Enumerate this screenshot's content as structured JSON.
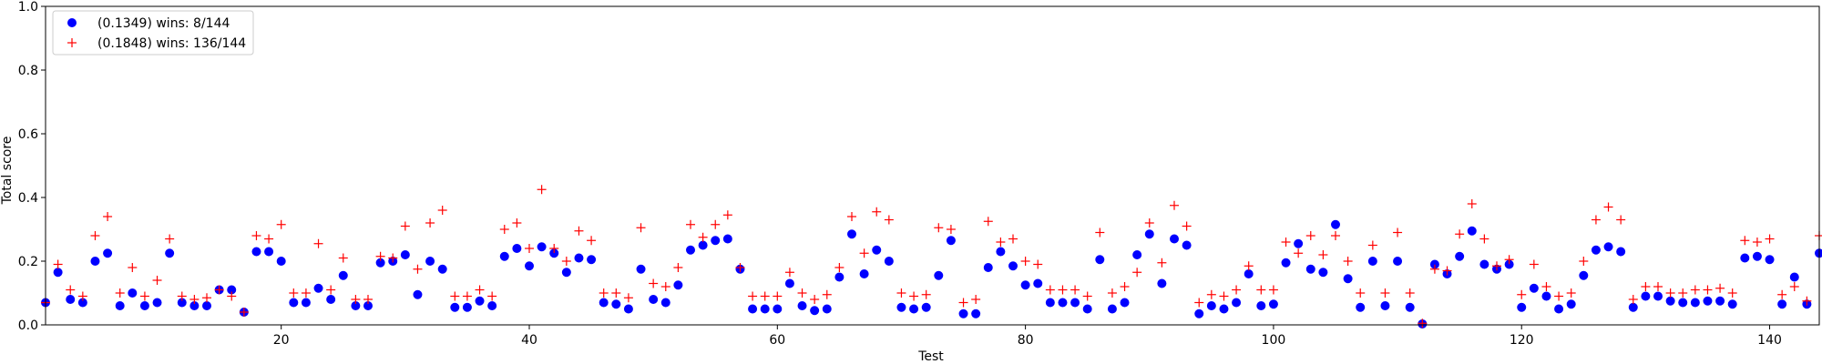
{
  "chart_data": {
    "type": "scatter",
    "xlabel": "Test",
    "ylabel": "Total score",
    "xlim": [
      1,
      144
    ],
    "ylim": [
      0.0,
      1.0
    ],
    "xticks": [
      20,
      40,
      60,
      80,
      100,
      120,
      140
    ],
    "yticks": [
      0.0,
      0.2,
      0.4,
      0.6,
      0.8,
      1.0
    ],
    "ytick_labels": [
      "0.0",
      "0.2",
      "0.4",
      "0.6",
      "0.8",
      "1.0"
    ],
    "grid": false,
    "legend_position": "top-left",
    "x": [
      1,
      2,
      3,
      4,
      5,
      6,
      7,
      8,
      9,
      10,
      11,
      12,
      13,
      14,
      15,
      16,
      17,
      18,
      19,
      20,
      21,
      22,
      23,
      24,
      25,
      26,
      27,
      28,
      29,
      30,
      31,
      32,
      33,
      34,
      35,
      36,
      37,
      38,
      39,
      40,
      41,
      42,
      43,
      44,
      45,
      46,
      47,
      48,
      49,
      50,
      51,
      52,
      53,
      54,
      55,
      56,
      57,
      58,
      59,
      60,
      61,
      62,
      63,
      64,
      65,
      66,
      67,
      68,
      69,
      70,
      71,
      72,
      73,
      74,
      75,
      76,
      77,
      78,
      79,
      80,
      81,
      82,
      83,
      84,
      85,
      86,
      87,
      88,
      89,
      90,
      91,
      92,
      93,
      94,
      95,
      96,
      97,
      98,
      99,
      100,
      101,
      102,
      103,
      104,
      105,
      106,
      107,
      108,
      109,
      110,
      111,
      112,
      113,
      114,
      115,
      116,
      117,
      118,
      119,
      120,
      121,
      122,
      123,
      124,
      125,
      126,
      127,
      128,
      129,
      130,
      131,
      132,
      133,
      134,
      135,
      136,
      137,
      138,
      139,
      140,
      141,
      142,
      143,
      144
    ],
    "series": [
      {
        "name": "(0.1349) wins: 8/144",
        "marker": "circle",
        "color": "#0000ff",
        "values": [
          0.07,
          0.165,
          0.08,
          0.07,
          0.2,
          0.225,
          0.06,
          0.1,
          0.06,
          0.07,
          0.225,
          0.07,
          0.06,
          0.06,
          0.11,
          0.11,
          0.04,
          0.23,
          0.23,
          0.2,
          0.07,
          0.07,
          0.115,
          0.08,
          0.155,
          0.06,
          0.06,
          0.195,
          0.2,
          0.22,
          0.095,
          0.2,
          0.175,
          0.055,
          0.055,
          0.075,
          0.06,
          0.215,
          0.24,
          0.185,
          0.245,
          0.225,
          0.165,
          0.21,
          0.205,
          0.07,
          0.065,
          0.05,
          0.175,
          0.08,
          0.07,
          0.125,
          0.235,
          0.25,
          0.265,
          0.27,
          0.175,
          0.05,
          0.05,
          0.05,
          0.13,
          0.06,
          0.045,
          0.05,
          0.15,
          0.285,
          0.16,
          0.235,
          0.2,
          0.055,
          0.05,
          0.055,
          0.155,
          0.265,
          0.035,
          0.035,
          0.18,
          0.23,
          0.185,
          0.125,
          0.13,
          0.07,
          0.07,
          0.07,
          0.05,
          0.205,
          0.05,
          0.07,
          0.22,
          0.285,
          0.13,
          0.27,
          0.25,
          0.035,
          0.06,
          0.05,
          0.07,
          0.16,
          0.06,
          0.065,
          0.195,
          0.255,
          0.175,
          0.165,
          0.315,
          0.145,
          0.055,
          0.2,
          0.06,
          0.2,
          0.055,
          0.003,
          0.19,
          0.16,
          0.215,
          0.295,
          0.19,
          0.175,
          0.19,
          0.055,
          0.115,
          0.09,
          0.05,
          0.065,
          0.155,
          0.235,
          0.245,
          0.23,
          0.055,
          0.09,
          0.09,
          0.075,
          0.07,
          0.07,
          0.075,
          0.075,
          0.065,
          0.21,
          0.215,
          0.205,
          0.065,
          0.15,
          0.065,
          0.225
        ]
      },
      {
        "name": "(0.1848) wins: 136/144",
        "marker": "plus",
        "color": "#ff0000",
        "values": [
          0.07,
          0.19,
          0.11,
          0.09,
          0.28,
          0.34,
          0.1,
          0.18,
          0.09,
          0.14,
          0.27,
          0.09,
          0.08,
          0.085,
          0.11,
          0.09,
          0.04,
          0.28,
          0.27,
          0.315,
          0.1,
          0.1,
          0.255,
          0.11,
          0.21,
          0.08,
          0.08,
          0.215,
          0.21,
          0.31,
          0.175,
          0.32,
          0.36,
          0.09,
          0.09,
          0.11,
          0.09,
          0.3,
          0.32,
          0.24,
          0.425,
          0.24,
          0.2,
          0.295,
          0.265,
          0.1,
          0.1,
          0.085,
          0.305,
          0.13,
          0.12,
          0.18,
          0.315,
          0.275,
          0.315,
          0.345,
          0.18,
          0.09,
          0.09,
          0.09,
          0.165,
          0.1,
          0.08,
          0.095,
          0.18,
          0.34,
          0.225,
          0.355,
          0.33,
          0.1,
          0.09,
          0.095,
          0.305,
          0.3,
          0.07,
          0.08,
          0.325,
          0.26,
          0.27,
          0.2,
          0.19,
          0.11,
          0.11,
          0.11,
          0.09,
          0.29,
          0.1,
          0.12,
          0.165,
          0.32,
          0.195,
          0.375,
          0.31,
          0.07,
          0.095,
          0.09,
          0.11,
          0.185,
          0.11,
          0.11,
          0.26,
          0.225,
          0.28,
          0.22,
          0.28,
          0.2,
          0.1,
          0.25,
          0.1,
          0.29,
          0.1,
          0.005,
          0.175,
          0.17,
          0.285,
          0.38,
          0.27,
          0.185,
          0.205,
          0.095,
          0.19,
          0.12,
          0.09,
          0.1,
          0.2,
          0.33,
          0.37,
          0.33,
          0.08,
          0.12,
          0.12,
          0.1,
          0.1,
          0.11,
          0.11,
          0.115,
          0.1,
          0.265,
          0.26,
          0.27,
          0.095,
          0.12,
          0.075,
          0.28
        ]
      }
    ]
  }
}
